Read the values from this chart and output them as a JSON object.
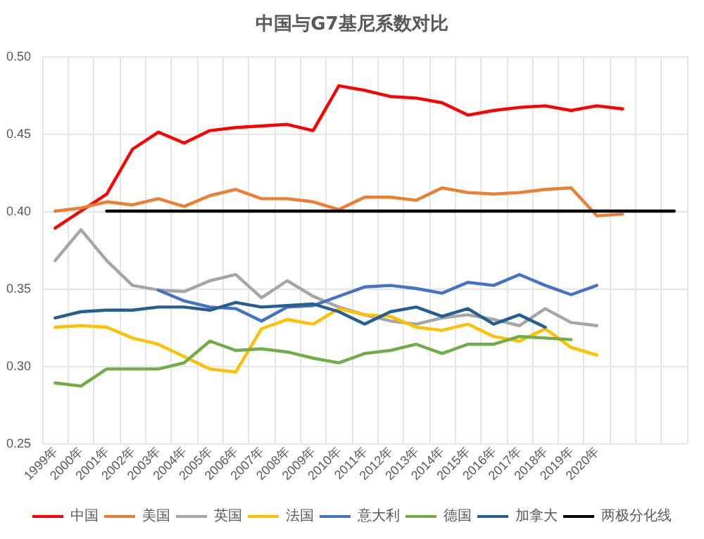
{
  "chart_data": {
    "type": "line",
    "title": "中国与G7基尼系数对比",
    "categories": [
      "1999年",
      "2000年",
      "2001年",
      "2002年",
      "2003年",
      "2004年",
      "2005年",
      "2006年",
      "2007年",
      "2008年",
      "2009年",
      "2010年",
      "2011年",
      "2012年",
      "2013年",
      "2014年",
      "2015年",
      "2016年",
      "2017年",
      "2018年",
      "2019年",
      "2020年",
      null,
      null,
      null
    ],
    "series": [
      {
        "name": "中国",
        "color": "#ff0000",
        "values": [
          0.389,
          0.4,
          0.411,
          0.44,
          0.451,
          0.444,
          0.452,
          0.454,
          0.455,
          0.456,
          0.452,
          0.481,
          0.478,
          0.474,
          0.473,
          0.47,
          0.462,
          0.465,
          0.467,
          0.468,
          0.465,
          0.468,
          0.466,
          null,
          null
        ]
      },
      {
        "name": "美国",
        "color": "#ed7d31",
        "values": [
          0.4,
          0.402,
          0.406,
          0.404,
          0.408,
          0.403,
          0.41,
          0.414,
          0.408,
          0.408,
          0.406,
          0.401,
          0.409,
          0.409,
          0.407,
          0.415,
          0.412,
          0.411,
          0.412,
          0.414,
          0.415,
          0.397,
          0.398,
          null,
          null
        ]
      },
      {
        "name": "英国",
        "color": "#a5a5a5",
        "values": [
          0.368,
          0.388,
          0.368,
          0.352,
          0.349,
          0.348,
          0.355,
          0.359,
          0.344,
          0.355,
          0.345,
          0.338,
          0.333,
          0.329,
          0.327,
          0.331,
          0.333,
          0.33,
          0.326,
          0.337,
          0.328,
          0.326,
          null,
          null,
          null
        ]
      },
      {
        "name": "法国",
        "color": "#ffc000",
        "values": [
          0.325,
          0.326,
          0.325,
          0.318,
          0.314,
          0.306,
          0.298,
          0.296,
          0.324,
          0.33,
          0.327,
          0.337,
          0.333,
          0.332,
          0.325,
          0.323,
          0.327,
          0.319,
          0.316,
          0.324,
          0.312,
          0.307,
          null,
          null,
          null
        ]
      },
      {
        "name": "意大利",
        "color": "#4472c4",
        "values": [
          null,
          null,
          null,
          null,
          0.349,
          0.342,
          0.338,
          0.337,
          0.329,
          0.338,
          0.339,
          0.345,
          0.351,
          0.352,
          0.35,
          0.347,
          0.354,
          0.352,
          0.359,
          0.352,
          0.346,
          0.352,
          null,
          null,
          null
        ]
      },
      {
        "name": "德国",
        "color": "#70ad47",
        "values": [
          0.289,
          0.287,
          0.298,
          0.298,
          0.298,
          0.302,
          0.316,
          0.31,
          0.311,
          0.309,
          0.305,
          0.302,
          0.308,
          0.31,
          0.314,
          0.308,
          0.314,
          0.314,
          0.319,
          0.318,
          0.317,
          null,
          null,
          null,
          null
        ]
      },
      {
        "name": "加拿大",
        "color": "#255e91",
        "values": [
          0.331,
          0.335,
          0.336,
          0.336,
          0.338,
          0.338,
          0.336,
          0.341,
          0.338,
          0.339,
          0.34,
          0.335,
          0.327,
          0.335,
          0.338,
          0.332,
          0.337,
          0.327,
          0.333,
          0.325,
          null,
          null,
          null,
          null,
          null
        ]
      },
      {
        "name": "两极分化线",
        "color": "#000000",
        "values": [
          null,
          null,
          0.4,
          0.4,
          0.4,
          0.4,
          0.4,
          0.4,
          0.4,
          0.4,
          0.4,
          0.4,
          0.4,
          0.4,
          0.4,
          0.4,
          0.4,
          0.4,
          0.4,
          0.4,
          0.4,
          0.4,
          0.4,
          0.4,
          0.4
        ]
      }
    ],
    "ylim": [
      0.25,
      0.5
    ],
    "yticks": [
      {
        "value": 0.25,
        "label": "0.25"
      },
      {
        "value": 0.3,
        "label": "0.30"
      },
      {
        "value": 0.35,
        "label": "0.35"
      },
      {
        "value": 0.4,
        "label": "0.40"
      },
      {
        "value": 0.45,
        "label": "0.45"
      },
      {
        "value": 0.5,
        "label": "0.50"
      }
    ],
    "grid": true,
    "legend": "bottom",
    "marker": "none",
    "line_style": "solid"
  }
}
